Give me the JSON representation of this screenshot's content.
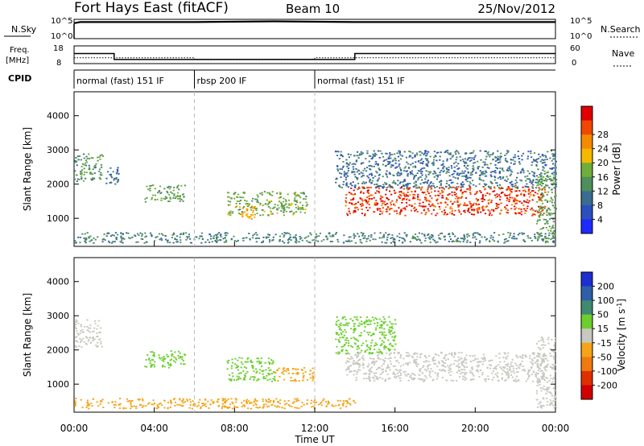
{
  "header": {
    "title": "Fort Hays East (fitACF)",
    "beam": "Beam 10",
    "date": "25/Nov/2012"
  },
  "noise_panel": {
    "left_label": "N.Sky",
    "left_ticks": [
      "10^5",
      "10^0"
    ],
    "right_ticks": [
      "10^5",
      "10^0"
    ],
    "right_label": "N.Search"
  },
  "freq_panel": {
    "left_label_1": "Freq.",
    "left_label_2": "[MHz]",
    "left_ticks": [
      "18",
      "8"
    ],
    "right_ticks": [
      "60",
      "0"
    ],
    "right_label": "Nave"
  },
  "cpid": {
    "label": "CPID",
    "segments": [
      {
        "name": "normal (fast) 151 IF",
        "start_h": 0,
        "end_h": 6
      },
      {
        "name": "rbsp 200 IF",
        "start_h": 6,
        "end_h": 12
      },
      {
        "name": "normal (fast) 151 IF",
        "start_h": 12,
        "end_h": 24
      }
    ]
  },
  "chart_data": [
    {
      "type": "line",
      "title": "",
      "ylabel": "N.Sky",
      "yscale": "log",
      "ylim": [
        1,
        100000
      ],
      "series": [
        {
          "name": "N.Sky",
          "x": [
            0,
            0.3,
            2,
            6,
            10,
            14,
            18,
            20,
            22,
            24
          ],
          "values": [
            10000,
            20000,
            20000,
            20000,
            30000,
            20000,
            20000,
            20000,
            20000,
            20000
          ]
        }
      ]
    },
    {
      "type": "line",
      "ylabel": "Freq. [MHz]",
      "ylim": [
        8,
        18
      ],
      "y2label": "Nave",
      "y2lim": [
        0,
        60
      ],
      "series": [
        {
          "name": "Freq.",
          "x": [
            0,
            2,
            2,
            14,
            14,
            24
          ],
          "values": [
            13.7,
            13.7,
            10.3,
            10.3,
            13.7,
            13.7
          ]
        },
        {
          "name": "Nave",
          "x": [
            0,
            6,
            6,
            12,
            12,
            24
          ],
          "values": [
            20,
            20,
            15,
            15,
            20,
            20
          ]
        }
      ]
    },
    {
      "type": "heatmap",
      "xlabel": "Time UT",
      "ylabel": "Slant Range [km]",
      "xlim": [
        0,
        24
      ],
      "ylim": [
        180,
        4700
      ],
      "x_ticks": [
        "00:00",
        "04:00",
        "08:00",
        "12:00",
        "16:00",
        "20:00",
        "00:00"
      ],
      "y_ticks": [
        1000,
        2000,
        3000,
        4000
      ],
      "colorbar_label": "Power [dB]",
      "colorbar_ticks": [
        4,
        8,
        12,
        16,
        20,
        24,
        28
      ],
      "colorbar_range": [
        0,
        30
      ],
      "regions": [
        {
          "t": [
            0,
            1.4
          ],
          "r": [
            2100,
            2900
          ],
          "value": 10
        },
        {
          "t": [
            1.5,
            2.2
          ],
          "r": [
            2000,
            2500
          ],
          "value": 5
        },
        {
          "t": [
            3.5,
            5.5
          ],
          "r": [
            1500,
            2000
          ],
          "value": 12
        },
        {
          "t": [
            7.6,
            11.6
          ],
          "r": [
            1100,
            1800
          ],
          "value": 13
        },
        {
          "t": [
            8,
            9
          ],
          "r": [
            1000,
            1400
          ],
          "value": 20
        },
        {
          "t": [
            13.5,
            23.5
          ],
          "r": [
            1100,
            1950
          ],
          "value": 27
        },
        {
          "t": [
            13,
            24
          ],
          "r": [
            1900,
            3000
          ],
          "value": 6
        },
        {
          "t": [
            0,
            24
          ],
          "r": [
            300,
            600
          ],
          "value": 8
        },
        {
          "t": [
            23,
            24
          ],
          "r": [
            300,
            2400
          ],
          "value": 12
        }
      ]
    },
    {
      "type": "heatmap",
      "xlabel": "Time UT",
      "ylabel": "Slant Range [km]",
      "xlim": [
        0,
        24
      ],
      "ylim": [
        180,
        4700
      ],
      "x_ticks": [
        "00:00",
        "04:00",
        "08:00",
        "12:00",
        "16:00",
        "20:00",
        "00:00"
      ],
      "y_ticks": [
        1000,
        2000,
        3000,
        4000
      ],
      "colorbar_label": "Velocity [m s^-1]",
      "colorbar_ticks": [
        "200",
        "100",
        "50",
        "15",
        "-15",
        "-50",
        "-100",
        "-200"
      ],
      "colorbar_range": [
        -250,
        250
      ],
      "regions": [
        {
          "t": [
            0,
            1.4
          ],
          "r": [
            2100,
            2900
          ],
          "value": 0
        },
        {
          "t": [
            3.5,
            5.5
          ],
          "r": [
            1500,
            2000
          ],
          "value": 40
        },
        {
          "t": [
            7.6,
            10
          ],
          "r": [
            1100,
            1800
          ],
          "value": 40
        },
        {
          "t": [
            10,
            12
          ],
          "r": [
            1100,
            1500
          ],
          "value": -40
        },
        {
          "t": [
            13.5,
            23.5
          ],
          "r": [
            1100,
            1950
          ],
          "value": 0
        },
        {
          "t": [
            13,
            16
          ],
          "r": [
            1900,
            3000
          ],
          "value": 40
        },
        {
          "t": [
            0,
            14
          ],
          "r": [
            300,
            600
          ],
          "value": -40
        },
        {
          "t": [
            23,
            24
          ],
          "r": [
            300,
            2400
          ],
          "value": 0
        }
      ]
    }
  ],
  "colors": {
    "power": [
      "#1e2aff",
      "#2c4fbf",
      "#3a6d90",
      "#4f8f5b",
      "#6fae3a",
      "#f5b800",
      "#f58a00",
      "#f04800",
      "#e00000"
    ],
    "velocity": [
      "#1d2fd0",
      "#2e5fa8",
      "#3f8a70",
      "#6ccf2e",
      "#c8c8c0",
      "#f5a418",
      "#f07a10",
      "#e03000",
      "#d00000"
    ]
  }
}
